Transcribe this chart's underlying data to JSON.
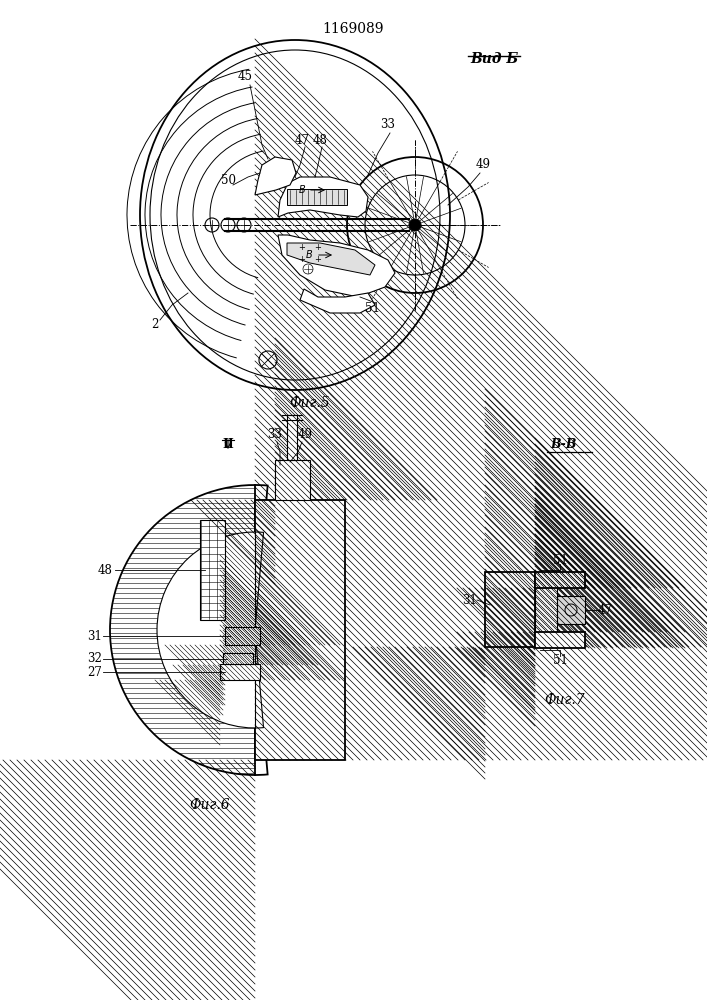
{
  "title": "1169089",
  "fig5_label": "Вид Б",
  "fig5_caption": "Фиг.5",
  "fig6_caption": "Фиг.6",
  "fig7_caption": "Фиг.7",
  "fig7_header": "В-В",
  "fig6_header": "II",
  "line_color": "#000000",
  "bg_color": "#ffffff"
}
